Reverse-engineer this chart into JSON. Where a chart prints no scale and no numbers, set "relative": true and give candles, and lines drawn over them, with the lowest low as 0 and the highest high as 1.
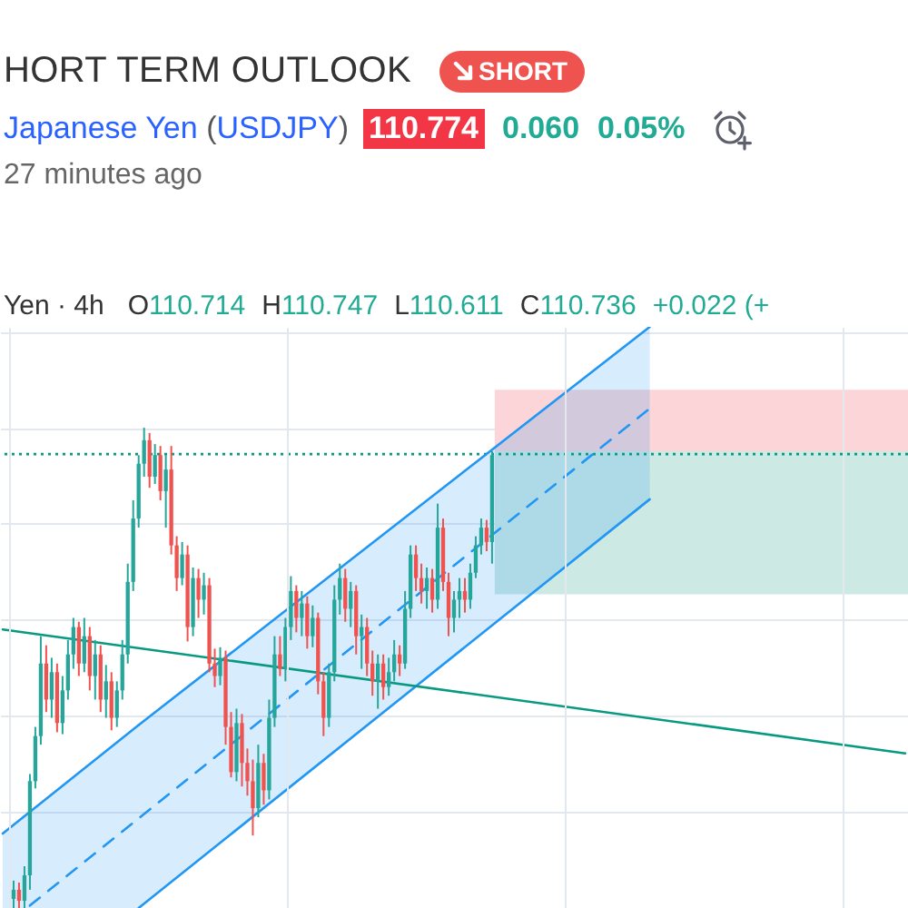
{
  "chart_data": {
    "type": "candlestick",
    "title": "HORT TERM OUTLOOK",
    "subtitle": "Japanese Yen (USDJPY)",
    "annotations": [
      "SHORT",
      "110.774",
      "0.060",
      "0.05%",
      "27 minutes ago",
      "Yen · 4h",
      "O110.714",
      "H110.747",
      "L110.611",
      "C110.736",
      "+0.022 (+"
    ],
    "relative": true,
    "grid": true,
    "categories": [
      null,
      null,
      null,
      null,
      null,
      null,
      null,
      null,
      null,
      null,
      null,
      null,
      null,
      null,
      null,
      null,
      null,
      null,
      null,
      null,
      null,
      null,
      null,
      null,
      null,
      null,
      null,
      null,
      null,
      null,
      null,
      null,
      null,
      null,
      null,
      null,
      null,
      null,
      null,
      null,
      null,
      null,
      null,
      null,
      null,
      null,
      null,
      null,
      null,
      null,
      null,
      null,
      null,
      null,
      null,
      null,
      null,
      null,
      null,
      null,
      null,
      null,
      null,
      null,
      null,
      null,
      null,
      null,
      null,
      null,
      null,
      null,
      null,
      null,
      null,
      null,
      null,
      null,
      null,
      null,
      null,
      null,
      null,
      null,
      null,
      null,
      null,
      null,
      null,
      null,
      null,
      null,
      null,
      null,
      null,
      null,
      null,
      null,
      null,
      null,
      null,
      null,
      null,
      null,
      null,
      null,
      null,
      null,
      null,
      null,
      null,
      null,
      null,
      null,
      null,
      null,
      null,
      null,
      null,
      null,
      null,
      null,
      null,
      null,
      null,
      null,
      null,
      null,
      null,
      null,
      null,
      null,
      null,
      null,
      null,
      null,
      null,
      null,
      null,
      null,
      null,
      null,
      null,
      null,
      null,
      null,
      null,
      null,
      null,
      null,
      null,
      null,
      null,
      null,
      null,
      null,
      null,
      null,
      null,
      null,
      null,
      null,
      null,
      null,
      null,
      null,
      null
    ],
    "ohlc": [
      null,
      null,
      [
        0.019,
        0.057,
        0,
        0.038
      ],
      [
        0.038,
        0.053,
        0,
        0.015
      ],
      [
        0.015,
        0.087,
        0,
        0.068
      ],
      [
        0.068,
        0.279,
        0.038,
        0.264
      ],
      [
        0.264,
        0.377,
        0.249,
        0.358
      ],
      [
        0.358,
        0.566,
        0.34,
        0.509
      ],
      [
        0.509,
        0.547,
        0.408,
        0.434
      ],
      [
        0.434,
        0.521,
        0.396,
        0.491
      ],
      [
        0.491,
        0.509,
        0.366,
        0.385
      ],
      [
        0.385,
        0.483,
        0.362,
        0.453
      ],
      [
        0.453,
        0.558,
        0.434,
        0.528
      ],
      [
        0.528,
        0.604,
        0.498,
        0.585
      ],
      [
        0.585,
        0.596,
        0.483,
        0.509
      ],
      [
        0.509,
        0.604,
        0.491,
        0.566
      ],
      [
        0.566,
        0.585,
        0.453,
        0.483
      ],
      [
        0.483,
        0.558,
        0.434,
        0.528
      ],
      [
        0.528,
        0.547,
        0.408,
        0.434
      ],
      [
        0.434,
        0.506,
        0.396,
        0.472
      ],
      [
        0.472,
        0.491,
        0.37,
        0.396
      ],
      [
        0.396,
        0.472,
        0.377,
        0.453
      ],
      [
        0.453,
        0.558,
        0.434,
        0.528
      ],
      [
        0.528,
        0.717,
        0.509,
        0.679
      ],
      [
        0.679,
        0.849,
        0.66,
        0.811
      ],
      [
        0.811,
        0.943,
        0.792,
        0.925
      ],
      [
        0.925,
        1,
        0.898,
        0.974
      ],
      [
        0.974,
        0.989,
        0.875,
        0.898
      ],
      [
        0.898,
        0.966,
        0.883,
        0.943
      ],
      [
        0.943,
        0.962,
        0.849,
        0.868
      ],
      [
        0.868,
        0.943,
        0.792,
        0.913
      ],
      [
        0.913,
        0.962,
        0.736,
        0.755
      ],
      [
        0.755,
        0.774,
        0.66,
        0.687
      ],
      [
        0.687,
        0.762,
        0.672,
        0.736
      ],
      [
        0.736,
        0.755,
        0.555,
        0.585
      ],
      [
        0.585,
        0.709,
        0.566,
        0.687
      ],
      [
        0.687,
        0.706,
        0.604,
        0.642
      ],
      [
        0.642,
        0.698,
        0.611,
        0.672
      ],
      [
        0.672,
        0.687,
        0.491,
        0.509
      ],
      [
        0.509,
        0.54,
        0.46,
        0.483
      ],
      [
        0.483,
        0.543,
        0.464,
        0.521
      ],
      [
        0.521,
        0.536,
        0.34,
        0.377
      ],
      [
        0.377,
        0.408,
        0.272,
        0.283
      ],
      [
        0.283,
        0.415,
        0.264,
        0.385
      ],
      [
        0.385,
        0.404,
        0.253,
        0.302
      ],
      [
        0.302,
        0.332,
        0.234,
        0.264
      ],
      [
        0.264,
        0.309,
        0.151,
        0.208
      ],
      [
        0.208,
        0.34,
        0.189,
        0.302
      ],
      [
        0.302,
        0.321,
        0.215,
        0.245
      ],
      [
        0.245,
        0.434,
        0.226,
        0.396
      ],
      [
        0.396,
        0.566,
        0.377,
        0.528
      ],
      [
        0.528,
        0.566,
        0.483,
        0.498
      ],
      [
        0.498,
        0.604,
        0.472,
        0.585
      ],
      [
        0.585,
        0.691,
        0.558,
        0.66
      ],
      [
        0.66,
        0.672,
        0.574,
        0.604
      ],
      [
        0.604,
        0.66,
        0.566,
        0.634
      ],
      [
        0.634,
        0.649,
        0.54,
        0.566
      ],
      [
        0.566,
        0.63,
        0.543,
        0.604
      ],
      [
        0.604,
        0.615,
        0.445,
        0.472
      ],
      [
        0.472,
        0.491,
        0.358,
        0.396
      ],
      [
        0.396,
        0.509,
        0.377,
        0.491
      ],
      [
        0.491,
        0.672,
        0.472,
        0.642
      ],
      [
        0.642,
        0.717,
        0.611,
        0.687
      ],
      [
        0.687,
        0.706,
        0.596,
        0.623
      ],
      [
        0.623,
        0.679,
        0.585,
        0.66
      ],
      [
        0.66,
        0.672,
        0.528,
        0.566
      ],
      [
        0.566,
        0.611,
        0.498,
        0.585
      ],
      [
        0.585,
        0.604,
        0.483,
        0.509
      ],
      [
        0.509,
        0.536,
        0.442,
        0.472
      ],
      [
        0.472,
        0.528,
        0.415,
        0.509
      ],
      [
        0.509,
        0.528,
        0.434,
        0.46
      ],
      [
        0.46,
        0.521,
        0.442,
        0.491
      ],
      [
        0.491,
        0.558,
        0.472,
        0.528
      ],
      [
        0.528,
        0.547,
        0.483,
        0.509
      ],
      [
        0.509,
        0.66,
        0.498,
        0.623
      ],
      [
        0.623,
        0.755,
        0.604,
        0.736
      ],
      [
        0.736,
        0.755,
        0.66,
        0.687
      ],
      [
        0.687,
        0.717,
        0.634,
        0.66
      ],
      [
        0.66,
        0.709,
        0.623,
        0.687
      ],
      [
        0.687,
        0.706,
        0.615,
        0.642
      ],
      [
        0.642,
        0.842,
        0.623,
        0.792
      ],
      [
        0.792,
        0.811,
        0.66,
        0.679
      ],
      [
        0.679,
        0.698,
        0.566,
        0.604
      ],
      [
        0.604,
        0.66,
        0.574,
        0.642
      ],
      [
        0.642,
        0.687,
        0.604,
        0.66
      ],
      [
        0.66,
        0.687,
        0.615,
        0.642
      ],
      [
        0.642,
        0.717,
        0.623,
        0.698
      ],
      [
        0.698,
        0.774,
        0.687,
        0.755
      ],
      [
        0.755,
        0.811,
        0.736,
        0.792
      ],
      [
        0.792,
        0.808,
        0.743,
        0.762
      ],
      [
        0.762,
        0.951,
        0.717,
        0.943
      ],
      null,
      null,
      null,
      null,
      null,
      null,
      null,
      null,
      null,
      null,
      null,
      null,
      null,
      null,
      null,
      null,
      null,
      null,
      null,
      null,
      null,
      null,
      null,
      null,
      null,
      null,
      null,
      null,
      null,
      null,
      null,
      null,
      null,
      null,
      null,
      null,
      null,
      null,
      null,
      null,
      null,
      null,
      null,
      null,
      null,
      null,
      null,
      null,
      null,
      null,
      null,
      null,
      null,
      null,
      null,
      null,
      null,
      null,
      null,
      null,
      null,
      null,
      null,
      null,
      null,
      null,
      null,
      null,
      null,
      null,
      null,
      null,
      null,
      null,
      null,
      null
    ],
    "colors": [
      null,
      null,
      "#26a69a",
      "#ef5350",
      "#26a69a",
      "#26a69a",
      "#26a69a",
      "#26a69a",
      "#ef5350",
      "#26a69a",
      "#ef5350",
      "#26a69a",
      "#26a69a",
      "#26a69a",
      "#ef5350",
      "#26a69a",
      "#ef5350",
      "#26a69a",
      "#ef5350",
      "#26a69a",
      "#ef5350",
      "#26a69a",
      "#26a69a",
      "#26a69a",
      "#26a69a",
      "#26a69a",
      "#26a69a",
      "#ef5350",
      "#26a69a",
      "#ef5350",
      "#26a69a",
      "#ef5350",
      "#ef5350",
      "#26a69a",
      "#ef5350",
      "#26a69a",
      "#ef5350",
      "#26a69a",
      "#ef5350",
      "#ef5350",
      "#26a69a",
      "#ef5350",
      "#ef5350",
      "#26a69a",
      "#ef5350",
      "#ef5350",
      "#ef5350",
      "#26a69a",
      "#ef5350",
      "#26a69a",
      "#26a69a",
      "#ef5350",
      "#26a69a",
      "#26a69a",
      "#ef5350",
      "#26a69a",
      "#ef5350",
      "#26a69a",
      "#ef5350",
      "#ef5350",
      "#26a69a",
      "#26a69a",
      "#26a69a",
      "#ef5350",
      "#26a69a",
      "#ef5350",
      "#26a69a",
      "#ef5350",
      "#ef5350",
      "#26a69a",
      "#ef5350",
      "#26a69a",
      "#26a69a",
      "#ef5350",
      "#26a69a",
      "#26a69a",
      "#ef5350",
      "#ef5350",
      "#26a69a",
      "#ef5350",
      "#26a69a",
      "#ef5350",
      "#ef5350",
      "#26a69a",
      "#26a69a",
      "#ef5350",
      "#26a69a",
      "#26a69a",
      "#26a69a",
      "#ef5350",
      "#26a69a",
      null,
      null,
      null,
      null,
      null,
      null,
      null,
      null,
      null,
      null,
      null,
      null,
      null,
      null,
      null,
      null,
      null,
      null,
      null,
      null,
      null,
      null,
      null,
      null,
      null,
      null,
      null,
      null,
      null,
      null,
      null,
      null,
      null,
      null,
      null,
      null,
      null,
      null,
      null,
      null,
      null,
      null,
      null,
      null,
      null,
      null,
      null,
      null,
      null,
      null,
      null,
      null,
      null,
      null,
      null,
      null,
      null,
      null,
      null,
      null,
      null,
      null,
      null,
      null,
      null,
      null,
      null,
      null,
      null,
      null,
      null,
      null,
      null,
      null,
      null,
      null
    ],
    "series": [
      {
        "type": "area",
        "color": "#2196f3",
        "values": [
          0.155,
          null,
          null,
          null,
          null,
          null,
          null,
          null,
          null,
          null,
          null,
          null,
          null,
          null,
          null,
          null,
          null,
          null,
          null,
          null,
          null,
          null,
          null,
          null,
          null,
          0.381,
          null,
          null,
          null,
          null,
          null,
          null,
          null,
          null,
          null,
          null,
          null,
          null,
          null,
          null,
          null,
          null,
          null,
          null,
          null,
          null,
          null,
          null,
          null,
          null,
          null,
          null,
          null,
          null,
          null,
          null,
          null,
          null,
          null,
          null,
          null,
          null,
          null,
          null,
          null,
          null,
          null,
          null,
          null,
          null,
          null,
          null,
          null,
          null,
          null,
          null,
          null,
          null,
          null,
          null,
          null,
          null,
          null,
          null,
          null,
          null,
          null,
          null,
          null,
          null,
          null,
          null,
          null,
          null,
          null,
          null,
          null,
          null,
          null,
          null,
          null,
          null,
          null,
          null,
          null,
          null,
          null,
          null,
          null,
          null,
          null,
          null,
          null,
          null,
          null,
          null,
          null,
          null,
          null,
          null,
          null,
          null,
          null,
          null,
          null,
          null,
          null,
          null,
          null,
          null,
          null,
          null,
          null,
          null,
          null,
          null,
          null,
          null,
          null,
          null,
          null,
          null,
          null,
          null,
          null,
          null,
          null,
          null,
          null,
          null,
          null,
          null,
          null,
          null,
          null,
          null,
          null,
          null,
          null,
          null,
          null,
          null,
          null,
          null,
          null,
          null,
          null
        ]
      },
      {
        "type": "line",
        "color": "#2196f3",
        "values": [
          null,
          null,
          null,
          null,
          null,
          null,
          null,
          null,
          null,
          null,
          null,
          null,
          null,
          null,
          null,
          null,
          null,
          null,
          null,
          null,
          null,
          null,
          null,
          null,
          null,
          0.381,
          null,
          null,
          null,
          null,
          null,
          null,
          null,
          null,
          null,
          null,
          null,
          null,
          null,
          null,
          null,
          null,
          null,
          null,
          null,
          null,
          null,
          null,
          null,
          null,
          null,
          null,
          null,
          null,
          null,
          null,
          null,
          null,
          null,
          null,
          null,
          null,
          null,
          null,
          null,
          null,
          null,
          null,
          null,
          null,
          null,
          null,
          null,
          null,
          null,
          null,
          null,
          null,
          null,
          null,
          null,
          null,
          null,
          null,
          null,
          null,
          null,
          null,
          null,
          null,
          null,
          null,
          null,
          null,
          null,
          null,
          null,
          null,
          null,
          null,
          null,
          null,
          null,
          null,
          null,
          null,
          null,
          null,
          null,
          null,
          null,
          null,
          null,
          null,
          null,
          null,
          null,
          null,
          null,
          1.21,
          null,
          null,
          null,
          null,
          null,
          null,
          null,
          null,
          null,
          null,
          null,
          null,
          null,
          null,
          null,
          null,
          null,
          null,
          null,
          null,
          null,
          null,
          null,
          null,
          null,
          null,
          null,
          null,
          null,
          null,
          null,
          null,
          null,
          null,
          null,
          null,
          null,
          null,
          null,
          null,
          null,
          null,
          null,
          null,
          null,
          null,
          null
        ]
      },
      {
        "type": "line",
        "color": "#2196f3",
        "values": [
          null,
          null,
          null,
          null,
          null,
          null,
          null,
          null,
          null,
          null,
          null,
          null,
          null,
          null,
          null,
          null,
          null,
          null,
          null,
          null,
          null,
          null,
          null,
          null,
          null,
          0,
          null,
          null,
          null,
          null,
          null,
          null,
          null,
          null,
          null,
          null,
          null,
          null,
          null,
          null,
          null,
          null,
          null,
          null,
          null,
          null,
          null,
          null,
          null,
          null,
          null,
          null,
          null,
          null,
          null,
          null,
          null,
          null,
          null,
          null,
          null,
          null,
          null,
          null,
          null,
          null,
          null,
          null,
          null,
          null,
          null,
          null,
          null,
          null,
          null,
          null,
          null,
          null,
          null,
          null,
          null,
          null,
          null,
          null,
          null,
          null,
          null,
          null,
          null,
          null,
          null,
          null,
          null,
          null,
          null,
          null,
          null,
          null,
          null,
          null,
          null,
          null,
          null,
          null,
          null,
          null,
          null,
          null,
          null,
          null,
          null,
          null,
          null,
          null,
          null,
          null,
          null,
          null,
          null,
          0.851,
          null,
          null,
          null,
          null,
          null,
          null,
          null,
          null,
          null,
          null,
          null,
          null,
          null,
          null,
          null,
          null,
          null,
          null,
          null,
          null,
          null,
          null,
          null,
          null,
          null,
          null,
          null,
          null,
          null,
          null,
          null,
          null,
          null,
          null,
          null,
          null,
          null,
          null,
          null,
          null,
          null,
          null,
          null,
          null,
          null,
          null,
          null
        ]
      },
      {
        "type": "line",
        "color": "#2196f3",
        "line_style": "dashed",
        "values": [
          null,
          null,
          null,
          null,
          null,
          0.005,
          null,
          null,
          null,
          null,
          null,
          null,
          null,
          null,
          null,
          null,
          null,
          null,
          null,
          null,
          null,
          null,
          null,
          null,
          null,
          null,
          null,
          null,
          null,
          null,
          null,
          null,
          null,
          null,
          null,
          null,
          null,
          null,
          null,
          null,
          null,
          null,
          null,
          null,
          null,
          null,
          null,
          null,
          null,
          null,
          null,
          null,
          null,
          null,
          null,
          null,
          null,
          null,
          null,
          null,
          null,
          null,
          null,
          null,
          null,
          null,
          null,
          null,
          null,
          null,
          null,
          null,
          null,
          null,
          null,
          null,
          null,
          null,
          null,
          null,
          null,
          null,
          null,
          null,
          null,
          null,
          null,
          null,
          null,
          null,
          null,
          null,
          null,
          null,
          null,
          null,
          null,
          null,
          null,
          null,
          null,
          null,
          null,
          null,
          null,
          null,
          null,
          null,
          null,
          null,
          null,
          null,
          null,
          null,
          null,
          null,
          null,
          null,
          null,
          1.04,
          null,
          null,
          null,
          null,
          null,
          null,
          null,
          null,
          null,
          null,
          null,
          null,
          null,
          null,
          null,
          null,
          null,
          null,
          null,
          null,
          null,
          null,
          null,
          null,
          null,
          null,
          null,
          null,
          null,
          null,
          null,
          null,
          null,
          null,
          null,
          null,
          null,
          null,
          null,
          null,
          null,
          null,
          null,
          null,
          null,
          null,
          null
        ],
        "lower": [
          null,
          null,
          null,
          null,
          null,
          null,
          null,
          null,
          null,
          null,
          null,
          null,
          null,
          null,
          null,
          null,
          null,
          null,
          null,
          null,
          null,
          null,
          null,
          null,
          null,
          0,
          null,
          null,
          null,
          null,
          null,
          null,
          null,
          null,
          null,
          null,
          null,
          null,
          null,
          null,
          null,
          null,
          null,
          null,
          null,
          null,
          null,
          null,
          null,
          null,
          null,
          null,
          null,
          null,
          null,
          null,
          null,
          null,
          null,
          null,
          null,
          null,
          null,
          null,
          null,
          null,
          null,
          null,
          null,
          null,
          null,
          null,
          null,
          null,
          null,
          null,
          null,
          null,
          null,
          null,
          null,
          null,
          null,
          null,
          null,
          null,
          null,
          null,
          null,
          null,
          null,
          null,
          null,
          null,
          null,
          null,
          null,
          null,
          null,
          null,
          null,
          null,
          null,
          null,
          null,
          null,
          null,
          null,
          null,
          null,
          null,
          null,
          null,
          null,
          null,
          null,
          null,
          null,
          null,
          0.851,
          null,
          null,
          null,
          null,
          null,
          null,
          null,
          null,
          null,
          null,
          null,
          null,
          null,
          null,
          null,
          null,
          null,
          null,
          null,
          null,
          null,
          null,
          null,
          null,
          null,
          null,
          null,
          null,
          null,
          null,
          null,
          null,
          null,
          null,
          null,
          null,
          null,
          null,
          null,
          null,
          null,
          null,
          null,
          null,
          null,
          null,
          null
        ],
        "upper": [
          null,
          null,
          null,
          null,
          null,
          null,
          null,
          null,
          null,
          null,
          null,
          null,
          null,
          null,
          null,
          null,
          null,
          null,
          null,
          null,
          null,
          null,
          null,
          null,
          null,
          0.381,
          null,
          null,
          null,
          null,
          null,
          null,
          null,
          null,
          null,
          null,
          null,
          null,
          null,
          null,
          null,
          null,
          null,
          null,
          null,
          null,
          null,
          null,
          null,
          null,
          null,
          null,
          null,
          null,
          null,
          null,
          null,
          null,
          null,
          null,
          null,
          null,
          null,
          null,
          null,
          null,
          null,
          null,
          null,
          null,
          null,
          null,
          null,
          null,
          null,
          null,
          null,
          null,
          null,
          null,
          null,
          null,
          null,
          null,
          null,
          null,
          null,
          null,
          null,
          null,
          null,
          null,
          null,
          null,
          null,
          null,
          null,
          null,
          null,
          null,
          null,
          null,
          null,
          null,
          null,
          null,
          null,
          null,
          null,
          null,
          null,
          null,
          null,
          null,
          null,
          null,
          null,
          null,
          null,
          1.21,
          null,
          null,
          null,
          null,
          null,
          null,
          null,
          null,
          null,
          null,
          null,
          null,
          null,
          null,
          null,
          null,
          null,
          null,
          null,
          null,
          null,
          null,
          null,
          null,
          null,
          null,
          null,
          null,
          null,
          null,
          null,
          null,
          null,
          null,
          null,
          null,
          null,
          null,
          null,
          null,
          null,
          null,
          null,
          null,
          null,
          null,
          null
        ]
      },
      {
        "type": "line",
        "color": "#089981",
        "values": [
          0.58,
          null,
          null,
          null,
          null,
          null,
          null,
          null,
          null,
          null,
          null,
          null,
          null,
          null,
          null,
          null,
          null,
          null,
          null,
          null,
          null,
          null,
          null,
          null,
          null,
          null,
          null,
          null,
          null,
          null,
          null,
          null,
          null,
          null,
          null,
          null,
          null,
          null,
          null,
          null,
          null,
          null,
          null,
          null,
          null,
          null,
          null,
          null,
          null,
          null,
          null,
          null,
          null,
          null,
          null,
          null,
          null,
          null,
          null,
          null,
          null,
          null,
          null,
          null,
          null,
          null,
          null,
          null,
          null,
          null,
          null,
          null,
          null,
          null,
          null,
          null,
          null,
          null,
          null,
          null,
          null,
          null,
          null,
          null,
          null,
          null,
          null,
          null,
          null,
          null,
          null,
          null,
          null,
          null,
          null,
          null,
          null,
          null,
          null,
          null,
          null,
          null,
          null,
          null,
          null,
          null,
          null,
          null,
          null,
          null,
          null,
          null,
          null,
          null,
          null,
          null,
          null,
          null,
          null,
          null,
          null,
          null,
          null,
          null,
          null,
          null,
          null,
          null,
          null,
          null,
          null,
          null,
          null,
          null,
          null,
          null,
          null,
          null,
          null,
          null,
          null,
          null,
          null,
          null,
          null,
          null,
          null,
          null,
          null,
          null,
          null,
          null,
          null,
          null,
          null,
          null,
          null,
          null,
          null,
          null,
          null,
          null,
          null,
          null,
          null,
          null,
          0.322
        ]
      }
    ],
    "ref_lines": [
      {
        "axis": "y",
        "value": 0.945,
        "color": "#089981",
        "line_style": "dotted"
      }
    ],
    "bands": [
      {
        "axis": "y",
        "from": 0.951,
        "to": 1.079,
        "color": "#fbd5d7"
      },
      {
        "axis": "y",
        "from": 0.653,
        "to": 0.951,
        "color": "#cde9e4"
      }
    ]
  }
}
